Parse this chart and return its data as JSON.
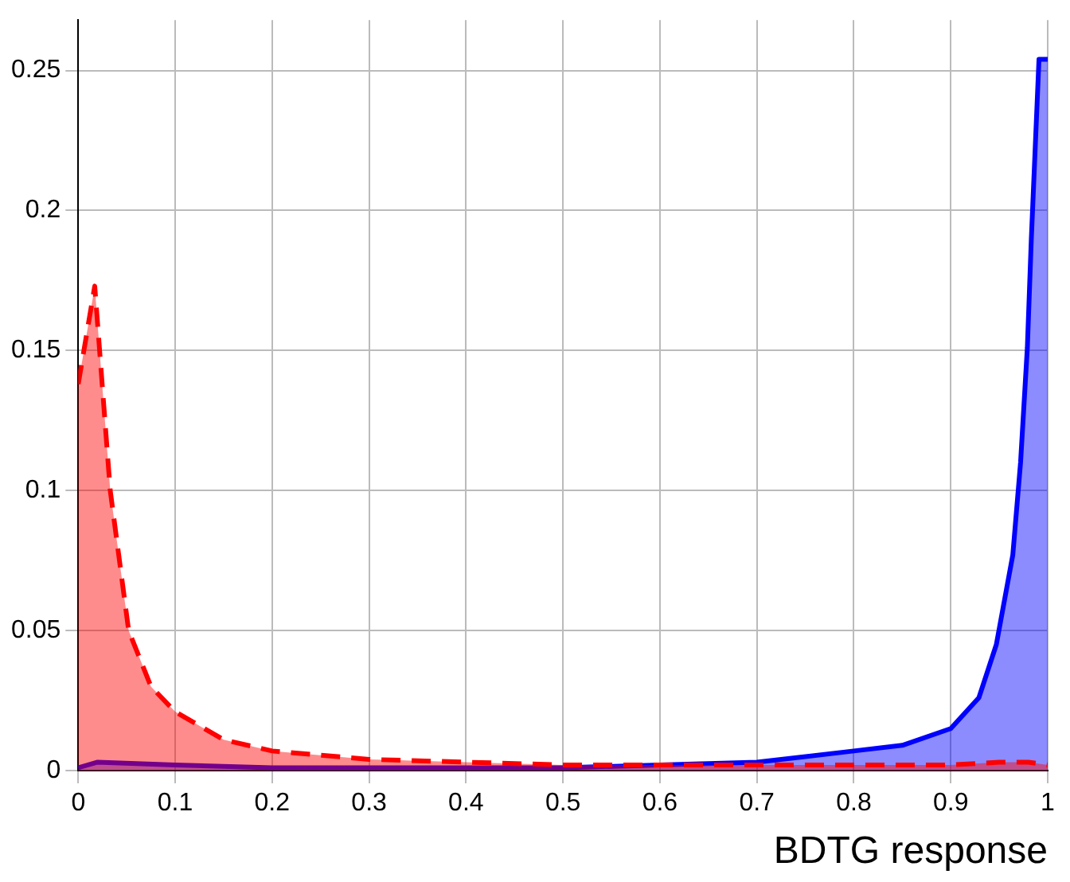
{
  "chart_data": {
    "type": "area",
    "xlabel": "BDTG response",
    "xlim": [
      0,
      1
    ],
    "xticks": [
      0,
      0.1,
      0.2,
      0.3,
      0.4,
      0.5,
      0.6,
      0.7,
      0.8,
      0.9,
      1
    ],
    "ylim": [
      0,
      0.268
    ],
    "yticks": [
      0,
      0.05,
      0.1,
      0.15,
      0.2,
      0.25
    ],
    "grid": true,
    "legend": false,
    "marker": "none",
    "series": [
      {
        "color": "#ff0000",
        "line_style": "dashed",
        "x": [
          0,
          0.017,
          0.033,
          0.052,
          0.075,
          0.1,
          0.15,
          0.2,
          0.3,
          0.4,
          0.5,
          0.6,
          0.7,
          0.8,
          0.9,
          0.95,
          0.98,
          1
        ],
        "values": [
          0.138,
          0.173,
          0.1,
          0.05,
          0.03,
          0.021,
          0.011,
          0.007,
          0.004,
          0.003,
          0.002,
          0.002,
          0.002,
          0.002,
          0.002,
          0.003,
          0.003,
          0.002
        ]
      },
      {
        "color": "#0000ff",
        "line_style": "solid",
        "x": [
          0,
          0.02,
          0.1,
          0.2,
          0.3,
          0.4,
          0.5,
          0.6,
          0.7,
          0.8,
          0.85,
          0.9,
          0.929,
          0.947,
          0.964,
          0.972,
          0.979,
          0.983,
          0.991,
          1
        ],
        "values": [
          0.001,
          0.003,
          0.002,
          0.001,
          0.001,
          0.001,
          0.001,
          0.002,
          0.003,
          0.007,
          0.009,
          0.015,
          0.026,
          0.045,
          0.077,
          0.11,
          0.151,
          0.189,
          0.254,
          0.254
        ]
      }
    ]
  }
}
